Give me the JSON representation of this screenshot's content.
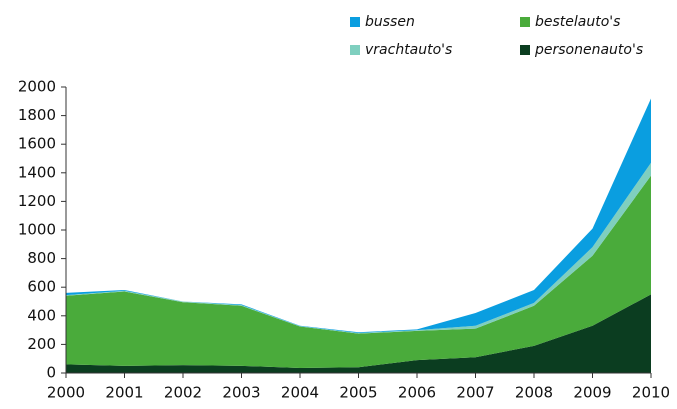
{
  "chart_data": {
    "type": "stacked-area",
    "categories": [
      "2000",
      "2001",
      "2002",
      "2003",
      "2004",
      "2005",
      "2006",
      "2007",
      "2008",
      "2009",
      "2010"
    ],
    "series": [
      {
        "name": "personenauto's",
        "color": "#0b3d20",
        "values": [
          60,
          50,
          55,
          50,
          35,
          40,
          90,
          110,
          190,
          330,
          550
        ]
      },
      {
        "name": "bestelauto's",
        "color": "#4aab3b",
        "values": [
          480,
          520,
          440,
          420,
          290,
          235,
          205,
          200,
          280,
          490,
          830
        ]
      },
      {
        "name": "vrachtauto's",
        "color": "#7fcfbf",
        "values": [
          5,
          5,
          5,
          5,
          3,
          5,
          5,
          20,
          20,
          60,
          90
        ]
      },
      {
        "name": "bussen",
        "color": "#0a9ee0",
        "values": [
          15,
          5,
          0,
          5,
          2,
          5,
          5,
          90,
          90,
          130,
          450
        ]
      }
    ],
    "ylim": [
      0,
      2000
    ],
    "yticks": [
      0,
      200,
      400,
      600,
      800,
      1000,
      1200,
      1400,
      1600,
      1800,
      2000
    ]
  }
}
